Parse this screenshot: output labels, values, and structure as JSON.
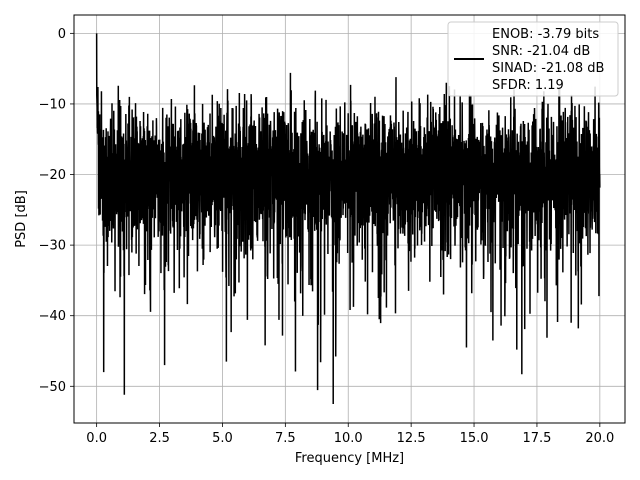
{
  "chart_data": {
    "type": "line",
    "xlabel": "Frequency [MHz]",
    "ylabel": "PSD [dB]",
    "xlim": [
      -0.9,
      21.0
    ],
    "ylim": [
      -55.2,
      2.6
    ],
    "x_ticks": [
      0.0,
      2.5,
      5.0,
      7.5,
      10.0,
      12.5,
      15.0,
      17.5,
      20.0
    ],
    "x_tick_labels": [
      "0.0",
      "2.5",
      "5.0",
      "7.5",
      "10.0",
      "12.5",
      "15.0",
      "17.5",
      "20.0"
    ],
    "y_ticks": [
      0,
      -10,
      -20,
      -30,
      -40,
      -50
    ],
    "y_tick_labels": [
      "0",
      "−10",
      "−20",
      "−30",
      "−40",
      "−50"
    ],
    "grid": true,
    "legend_position": "top-right",
    "legend_lines": [
      "ENOB: -3.79 bits",
      "SNR: -21.04 dB",
      "SINAD: -21.08 dB",
      "SFDR: 1.19"
    ],
    "line_color": "#000000",
    "series": [
      {
        "x_start": 0.0,
        "x_end": 20.0,
        "points": 4000,
        "typical_level_db": -20,
        "envelope_upper_db": -9,
        "envelope_lower_db": -30,
        "peaks": [
          {
            "x": 0.0,
            "y": 0.0
          },
          {
            "x": 0.05,
            "y": -7.6
          },
          {
            "x": 1.3,
            "y": -9.0
          },
          {
            "x": 7.7,
            "y": -5.6
          },
          {
            "x": 11.9,
            "y": -6.2
          },
          {
            "x": 13.9,
            "y": -7.0
          },
          {
            "x": 18.4,
            "y": -7.6
          }
        ],
        "dips": [
          {
            "x": 0.28,
            "y": -48.0
          },
          {
            "x": 1.1,
            "y": -51.2
          },
          {
            "x": 2.7,
            "y": -47.0
          },
          {
            "x": 7.9,
            "y": -47.9
          },
          {
            "x": 8.9,
            "y": -46.6
          },
          {
            "x": 9.4,
            "y": -52.5
          },
          {
            "x": 16.9,
            "y": -48.3
          }
        ]
      }
    ]
  }
}
